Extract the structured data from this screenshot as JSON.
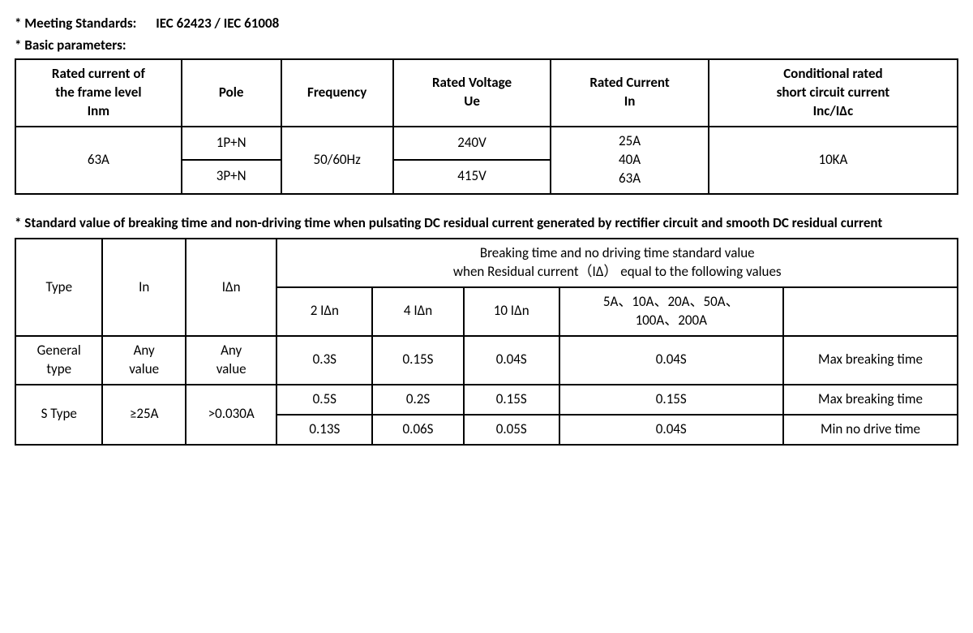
{
  "header": {
    "standards_label": "* Meeting Standards:",
    "standards_value": "IEC 62423 / IEC 61008",
    "basic_params_label": "* Basic parameters:"
  },
  "table1": {
    "headers": {
      "h1_l1": "Rated current of",
      "h1_l2": "the frame level",
      "h1_l3": "Inm",
      "h2": "Pole",
      "h3": "Frequency",
      "h4_l1": "Rated Voltage",
      "h4_l2": "Ue",
      "h5_l1": "Rated Current",
      "h5_l2": "In",
      "h6_l1": "Conditional rated",
      "h6_l2": "short circuit current",
      "h6_l3": "Inc/IΔc"
    },
    "body": {
      "inm": "63A",
      "pole1": "1P+N",
      "pole2": "3P+N",
      "freq": "50/60Hz",
      "ue1": "240V",
      "ue2": "415V",
      "in1": "25A",
      "in2": "40A",
      "in3": "63A",
      "inc": "10KA"
    }
  },
  "section2_title": "* Standard value of breaking time and non-driving time when pulsating DC residual current generated by rectifier circuit and smooth DC residual current",
  "table2": {
    "headers": {
      "type": "Type",
      "in": "In",
      "idn": "IΔn",
      "span_l1": "Breaking time and no driving time standard value",
      "span_l2": "when Residual current（IΔ） equal to the following values",
      "c4": "2 IΔn",
      "c5": "4 IΔn",
      "c6": "10 IΔn",
      "c7_l1": "5A、10A、20A、50A、",
      "c7_l2": "100A、200A",
      "c8": ""
    },
    "rows": {
      "r1": {
        "type_l1": "General",
        "type_l2": "type",
        "in_l1": "Any",
        "in_l2": "value",
        "idn_l1": "Any",
        "idn_l2": "value",
        "v1": "0.3S",
        "v2": "0.15S",
        "v3": "0.04S",
        "v4": "0.04S",
        "desc": "Max breaking time"
      },
      "r2": {
        "type": "S Type",
        "in": "≥25A",
        "idn": ">0.030A",
        "a": {
          "v1": "0.5S",
          "v2": "0.2S",
          "v3": "0.15S",
          "v4": "0.15S",
          "desc": "Max breaking time"
        },
        "b": {
          "v1": "0.13S",
          "v2": "0.06S",
          "v3": "0.05S",
          "v4": "0.04S",
          "desc": "Min no drive time"
        }
      }
    }
  }
}
